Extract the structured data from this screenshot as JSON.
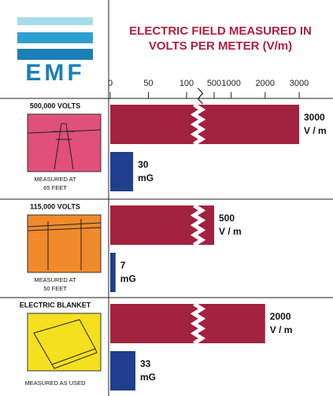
{
  "chart_data": {
    "type": "bar",
    "logo": "EMF",
    "title": [
      "ELECTRIC FIELD MEASURED IN",
      "VOLTS PER METER (V/m)"
    ],
    "categories": [
      "500,000 VOLTS",
      "115,000 VOLTS",
      "ELECTRIC BLANKET"
    ],
    "category_notes": [
      [
        "MEASURED AT",
        "65 FEET"
      ],
      [
        "MEASURED AT",
        "50 FEET"
      ],
      [
        "MEASURED AS USED"
      ]
    ],
    "category_colors": [
      "#e0507a",
      "#f08a2a",
      "#f4e01e"
    ],
    "series": [
      {
        "unit": "V / m",
        "color": "#a3223f",
        "values": [
          3000,
          500,
          2000
        ]
      },
      {
        "unit": "mG",
        "color": "#1f3f8f",
        "values": [
          30,
          7,
          33
        ]
      }
    ],
    "xlim": [
      0,
      3000
    ],
    "xticks": [
      0,
      50,
      100,
      500,
      1000,
      2000,
      3000
    ],
    "axis_break": {
      "from": 100,
      "to": 500
    }
  }
}
